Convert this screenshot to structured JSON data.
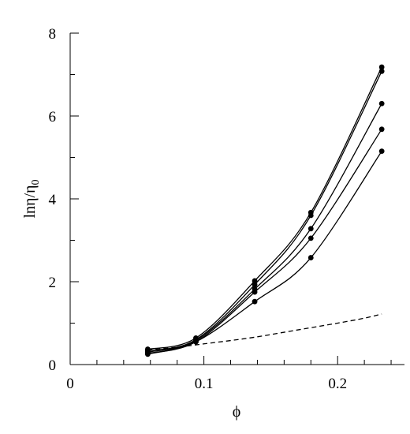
{
  "chart_data": {
    "type": "line",
    "xlabel": "ϕ",
    "ylabel_main": "lnη/η",
    "ylabel_sub": "0",
    "xlim": [
      0,
      0.25
    ],
    "ylim": [
      0,
      8
    ],
    "x_ticks": [
      0,
      0.1,
      0.2
    ],
    "x_tick_labels": [
      "0",
      "0.1",
      "0.2"
    ],
    "y_ticks": [
      0,
      2,
      4,
      6,
      8
    ],
    "y_tick_labels": [
      "0",
      "2",
      "4",
      "6",
      "8"
    ],
    "x_minor_step": 0.02,
    "y_minor_step": 1,
    "grid": false,
    "legend": "none",
    "series": [
      {
        "style": "solid",
        "markers": true,
        "x": [
          0.058,
          0.094,
          0.138,
          0.18,
          0.233
        ],
        "y": [
          0.37,
          0.64,
          2.02,
          3.67,
          7.18
        ]
      },
      {
        "style": "solid",
        "markers": true,
        "x": [
          0.058,
          0.094,
          0.138,
          0.18,
          0.233
        ],
        "y": [
          0.33,
          0.6,
          1.93,
          3.6,
          7.08
        ]
      },
      {
        "style": "solid",
        "markers": true,
        "x": [
          0.058,
          0.094,
          0.138,
          0.18,
          0.233
        ],
        "y": [
          0.3,
          0.58,
          1.82,
          3.28,
          6.3
        ]
      },
      {
        "style": "solid",
        "markers": true,
        "x": [
          0.058,
          0.094,
          0.138,
          0.18,
          0.233
        ],
        "y": [
          0.27,
          0.55,
          1.75,
          3.05,
          5.68
        ]
      },
      {
        "style": "solid",
        "markers": true,
        "x": [
          0.058,
          0.094,
          0.138,
          0.18,
          0.233
        ],
        "y": [
          0.25,
          0.55,
          1.52,
          2.58,
          5.15
        ]
      },
      {
        "style": "dashed",
        "markers": false,
        "x": [
          0.058,
          0.08,
          0.1,
          0.12,
          0.14,
          0.16,
          0.18,
          0.2,
          0.22,
          0.233
        ],
        "y": [
          0.35,
          0.42,
          0.5,
          0.58,
          0.67,
          0.78,
          0.89,
          1.0,
          1.12,
          1.22
        ]
      }
    ]
  }
}
